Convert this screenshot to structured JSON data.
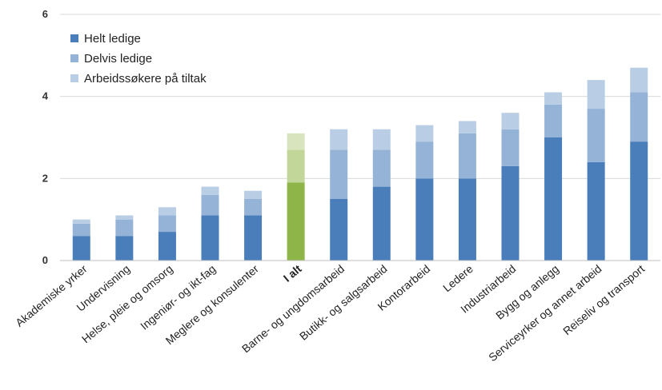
{
  "chart_data": {
    "type": "bar",
    "stacked": true,
    "title": "",
    "xlabel": "",
    "ylabel": "",
    "ylim": [
      0,
      6
    ],
    "yticks": [
      0,
      2,
      4,
      6
    ],
    "grid": true,
    "legend_position": "top-left",
    "highlight_category": "I alt",
    "categories": [
      "Akademiske yrker",
      "Undervisning",
      "Helse, pleie og omsorg",
      "Ingeniør- og ikt-fag",
      "Meglere og konsulenter",
      "I alt",
      "Barne- og ungdomsarbeid",
      "Butikk- og salgsarbeid",
      "Kontorarbeid",
      "Ledere",
      "Industriarbeid",
      "Bygg og anlegg",
      "Serviceyrker og annet arbeid",
      "Reiseliv og transport"
    ],
    "series": [
      {
        "name": "Helt ledige",
        "color": "#4a7ebb",
        "highlight_color": "#8db548",
        "values": [
          0.6,
          0.6,
          0.7,
          1.1,
          1.1,
          1.9,
          1.5,
          1.8,
          2.0,
          2.0,
          2.3,
          3.0,
          2.4,
          2.9
        ]
      },
      {
        "name": "Delvis ledige",
        "color": "#95b3d7",
        "highlight_color": "#c2d69a",
        "values": [
          0.3,
          0.4,
          0.4,
          0.5,
          0.4,
          0.8,
          1.2,
          0.9,
          0.9,
          1.1,
          0.9,
          0.8,
          1.3,
          1.2
        ]
      },
      {
        "name": "Arbeidssøkere på tiltak",
        "color": "#b9cde5",
        "highlight_color": "#d7e4bd",
        "values": [
          0.1,
          0.1,
          0.2,
          0.2,
          0.2,
          0.4,
          0.5,
          0.5,
          0.4,
          0.3,
          0.4,
          0.3,
          0.7,
          0.6
        ]
      }
    ]
  }
}
